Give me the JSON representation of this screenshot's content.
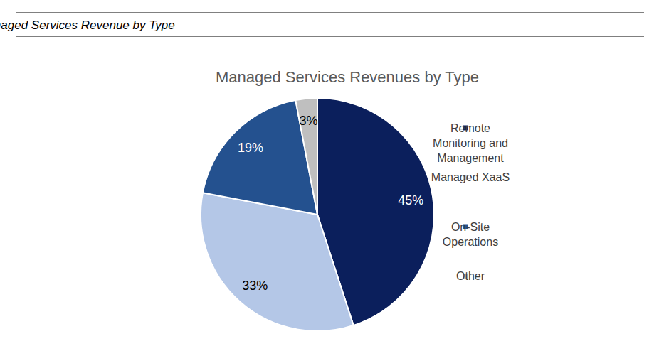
{
  "chart_data": {
    "type": "pie",
    "header": "Managed Services Revenue by Type",
    "title": "Managed Services Revenues by Type",
    "categories": [
      "Remote Monitoring and Management",
      "Managed XaaS",
      "On-Site Operations",
      "Other"
    ],
    "values": [
      45,
      33,
      19,
      3
    ],
    "value_labels": [
      "45%",
      "33%",
      "19%",
      "3%"
    ],
    "colors": [
      "#0b1f5c",
      "#b4c7e7",
      "#24518f",
      "#bfbfbf"
    ],
    "data_labels": true,
    "legend": "right"
  }
}
